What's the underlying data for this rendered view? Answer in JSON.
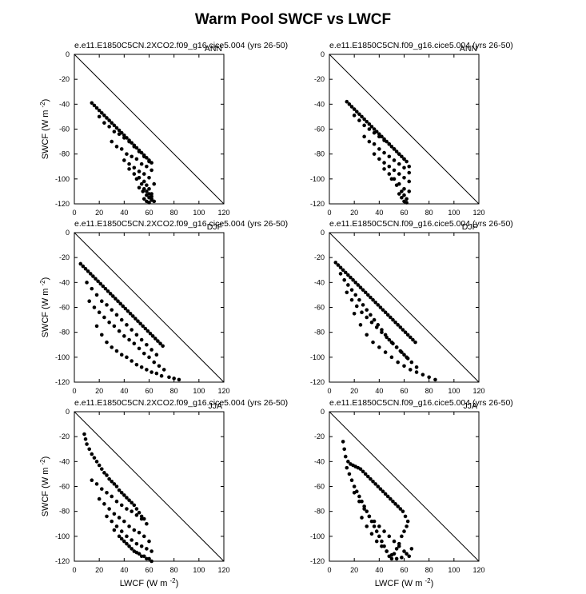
{
  "figure": {
    "title": "Warm Pool SWCF vs LWCF",
    "xlabel": "LWCF (W m",
    "ylabel": "SWCF (W m",
    "unit_exp": "-2",
    "unit_close": ")"
  },
  "chart_data": [
    {
      "type": "scatter",
      "title": "e.e11.E1850C5CN.2XCO2.f09_g16.cice5.004 (yrs 26-50)",
      "season": "ANN",
      "xlabel": "",
      "ylabel": "SWCF (W m-2)",
      "xlim": [
        0,
        120
      ],
      "ylim": [
        -120,
        0
      ],
      "xticks": [
        0,
        20,
        40,
        60,
        80,
        100,
        120
      ],
      "yticks": [
        0,
        -20,
        -40,
        -60,
        -80,
        -100,
        -120
      ],
      "reference_line": [
        [
          0,
          0
        ],
        [
          120,
          -120
        ]
      ],
      "series": [
        {
          "x": [
            14,
            16,
            18,
            20,
            22,
            24,
            26,
            28,
            30,
            32,
            34,
            36,
            38,
            40,
            42,
            44,
            46,
            48,
            50,
            52,
            54,
            56,
            58,
            60,
            62,
            20,
            24,
            28,
            32,
            36,
            40,
            44,
            48,
            52,
            56,
            60,
            30,
            34,
            38,
            42,
            46,
            50,
            54,
            58,
            62,
            40,
            44,
            48,
            52,
            56,
            60,
            64,
            44,
            48,
            52,
            56,
            58,
            60,
            62,
            50,
            54,
            56,
            58,
            60,
            62,
            52,
            55,
            58,
            60,
            62,
            64,
            56,
            58,
            60,
            62
          ],
          "y": [
            -39,
            -41,
            -43,
            -45,
            -47,
            -49,
            -51,
            -53,
            -55,
            -57,
            -59,
            -61,
            -63,
            -65,
            -67,
            -69,
            -71,
            -73,
            -75,
            -77,
            -79,
            -81,
            -83,
            -85,
            -87,
            -50,
            -55,
            -58,
            -62,
            -64,
            -67,
            -70,
            -74,
            -78,
            -82,
            -86,
            -70,
            -74,
            -76,
            -80,
            -82,
            -84,
            -88,
            -90,
            -93,
            -85,
            -88,
            -91,
            -94,
            -96,
            -99,
            -104,
            -92,
            -96,
            -99,
            -102,
            -105,
            -108,
            -112,
            -100,
            -104,
            -108,
            -110,
            -112,
            -114,
            -107,
            -110,
            -113,
            -115,
            -117,
            -118,
            -116,
            -118,
            -119,
            -116
          ]
        }
      ]
    },
    {
      "type": "scatter",
      "title": "e.e11.E1850C5CN.f09_g16.cice5.004 (yrs 26-50)",
      "season": "ANN",
      "xlabel": "",
      "ylabel": "",
      "xlim": [
        0,
        120
      ],
      "ylim": [
        -120,
        0
      ],
      "xticks": [
        0,
        20,
        40,
        60,
        80,
        100,
        120
      ],
      "yticks": [
        0,
        -20,
        -40,
        -60,
        -80,
        -100,
        -120
      ],
      "reference_line": [
        [
          0,
          0
        ],
        [
          120,
          -120
        ]
      ],
      "series": [
        {
          "x": [
            14,
            16,
            18,
            20,
            22,
            24,
            26,
            28,
            30,
            32,
            34,
            36,
            38,
            40,
            42,
            44,
            46,
            48,
            50,
            52,
            54,
            56,
            58,
            60,
            62,
            64,
            20,
            24,
            28,
            32,
            36,
            40,
            44,
            48,
            52,
            56,
            60,
            28,
            32,
            36,
            40,
            44,
            48,
            52,
            56,
            60,
            64,
            36,
            40,
            44,
            48,
            52,
            56,
            60,
            64,
            44,
            48,
            52,
            56,
            60,
            64,
            50,
            54,
            58,
            60,
            62,
            56,
            58,
            60,
            62
          ],
          "y": [
            -38,
            -40,
            -42,
            -44,
            -46,
            -48,
            -50,
            -52,
            -54,
            -56,
            -58,
            -60,
            -62,
            -64,
            -66,
            -68,
            -70,
            -72,
            -74,
            -76,
            -78,
            -80,
            -82,
            -84,
            -86,
            -90,
            -49,
            -53,
            -57,
            -60,
            -63,
            -66,
            -69,
            -72,
            -76,
            -80,
            -84,
            -66,
            -70,
            -72,
            -76,
            -79,
            -82,
            -85,
            -88,
            -91,
            -95,
            -80,
            -84,
            -87,
            -90,
            -93,
            -96,
            -99,
            -102,
            -92,
            -96,
            -100,
            -104,
            -108,
            -110,
            -100,
            -105,
            -110,
            -113,
            -116,
            -112,
            -115,
            -118,
            -119
          ]
        }
      ]
    },
    {
      "type": "scatter",
      "title": "e.e11.E1850C5CN.2XCO2.f09_g16.cice5.004 (yrs 26-50)",
      "season": "DJF",
      "xlabel": "",
      "ylabel": "SWCF (W m-2)",
      "xlim": [
        0,
        120
      ],
      "ylim": [
        -120,
        0
      ],
      "xticks": [
        0,
        20,
        40,
        60,
        80,
        100,
        120
      ],
      "yticks": [
        0,
        -20,
        -40,
        -60,
        -80,
        -100,
        -120
      ],
      "reference_line": [
        [
          0,
          0
        ],
        [
          120,
          -120
        ]
      ],
      "series": [
        {
          "x": [
            5,
            7,
            9,
            11,
            13,
            15,
            17,
            19,
            21,
            23,
            25,
            27,
            29,
            31,
            33,
            35,
            37,
            39,
            41,
            43,
            45,
            47,
            49,
            51,
            53,
            55,
            57,
            59,
            61,
            63,
            65,
            67,
            69,
            71,
            10,
            14,
            18,
            22,
            26,
            30,
            34,
            38,
            42,
            46,
            50,
            54,
            58,
            62,
            66,
            12,
            16,
            20,
            24,
            28,
            32,
            36,
            40,
            44,
            48,
            52,
            56,
            60,
            64,
            68,
            72,
            18,
            22,
            26,
            30,
            34,
            38,
            42,
            46,
            50,
            54,
            58,
            62,
            66,
            70,
            76,
            80,
            84
          ],
          "y": [
            -25,
            -27,
            -29,
            -31,
            -33,
            -35,
            -37,
            -39,
            -41,
            -43,
            -45,
            -47,
            -49,
            -51,
            -53,
            -55,
            -57,
            -59,
            -61,
            -63,
            -65,
            -67,
            -69,
            -71,
            -73,
            -75,
            -77,
            -79,
            -81,
            -83,
            -85,
            -87,
            -89,
            -91,
            -40,
            -45,
            -50,
            -55,
            -58,
            -62,
            -66,
            -70,
            -74,
            -78,
            -82,
            -86,
            -90,
            -94,
            -98,
            -55,
            -60,
            -64,
            -68,
            -72,
            -75,
            -79,
            -83,
            -86,
            -89,
            -93,
            -97,
            -100,
            -104,
            -107,
            -110,
            -75,
            -82,
            -88,
            -92,
            -95,
            -98,
            -100,
            -103,
            -106,
            -108,
            -110,
            -112,
            -113,
            -115,
            -116,
            -117,
            -118
          ]
        }
      ]
    },
    {
      "type": "scatter",
      "title": "e.e11.E1850C5CN.f09_g16.cice5.004 (yrs 26-50)",
      "season": "DJF",
      "xlabel": "",
      "ylabel": "",
      "xlim": [
        0,
        120
      ],
      "ylim": [
        -120,
        0
      ],
      "xticks": [
        0,
        20,
        40,
        60,
        80,
        100,
        120
      ],
      "yticks": [
        0,
        -20,
        -40,
        -60,
        -80,
        -100,
        -120
      ],
      "reference_line": [
        [
          0,
          0
        ],
        [
          120,
          -120
        ]
      ],
      "series": [
        {
          "x": [
            5,
            7,
            9,
            11,
            13,
            15,
            17,
            19,
            21,
            23,
            25,
            27,
            29,
            31,
            33,
            35,
            37,
            39,
            41,
            43,
            45,
            47,
            49,
            51,
            53,
            55,
            57,
            59,
            61,
            63,
            65,
            67,
            69,
            9,
            12,
            15,
            18,
            21,
            24,
            27,
            30,
            33,
            36,
            39,
            42,
            45,
            48,
            51,
            54,
            57,
            60,
            63,
            14,
            18,
            22,
            26,
            30,
            34,
            38,
            42,
            46,
            50,
            54,
            58,
            62,
            66,
            70,
            20,
            25,
            30,
            35,
            40,
            45,
            50,
            55,
            60,
            65,
            70,
            75,
            80,
            85
          ],
          "y": [
            -24,
            -26,
            -28,
            -30,
            -32,
            -34,
            -36,
            -38,
            -40,
            -42,
            -44,
            -46,
            -48,
            -50,
            -52,
            -54,
            -56,
            -58,
            -60,
            -62,
            -64,
            -66,
            -68,
            -70,
            -72,
            -74,
            -76,
            -78,
            -80,
            -82,
            -84,
            -86,
            -88,
            -33,
            -38,
            -42,
            -46,
            -50,
            -54,
            -58,
            -62,
            -66,
            -70,
            -74,
            -78,
            -82,
            -86,
            -89,
            -92,
            -95,
            -98,
            -101,
            -48,
            -54,
            -59,
            -64,
            -68,
            -72,
            -76,
            -80,
            -84,
            -88,
            -92,
            -96,
            -100,
            -104,
            -108,
            -65,
            -74,
            -82,
            -88,
            -92,
            -96,
            -100,
            -104,
            -107,
            -110,
            -112,
            -114,
            -116,
            -118
          ]
        }
      ]
    },
    {
      "type": "scatter",
      "title": "e.e11.E1850C5CN.2XCO2.f09_g16.cice5.004 (yrs 26-50)",
      "season": "JJA",
      "xlabel": "LWCF (W m-2)",
      "ylabel": "SWCF (W m-2)",
      "xlim": [
        0,
        120
      ],
      "ylim": [
        -120,
        0
      ],
      "xticks": [
        0,
        20,
        40,
        60,
        80,
        100,
        120
      ],
      "yticks": [
        0,
        -20,
        -40,
        -60,
        -80,
        -100,
        -120
      ],
      "reference_line": [
        [
          0,
          0
        ],
        [
          120,
          -120
        ]
      ],
      "series": [
        {
          "x": [
            8,
            9,
            10,
            12,
            14,
            16,
            18,
            20,
            22,
            24,
            26,
            28,
            30,
            32,
            34,
            36,
            38,
            40,
            42,
            44,
            46,
            48,
            50,
            52,
            54,
            56,
            14,
            18,
            22,
            26,
            30,
            34,
            38,
            42,
            46,
            50,
            54,
            58,
            20,
            24,
            28,
            32,
            36,
            40,
            44,
            48,
            52,
            56,
            60,
            26,
            30,
            34,
            38,
            42,
            46,
            50,
            54,
            58,
            62,
            32,
            36,
            40,
            44,
            48,
            52,
            56,
            60,
            38,
            42,
            46,
            50,
            54,
            58,
            62
          ],
          "y": [
            -18,
            -22,
            -26,
            -30,
            -34,
            -37,
            -40,
            -43,
            -46,
            -49,
            -51,
            -54,
            -56,
            -58,
            -60,
            -63,
            -65,
            -67,
            -69,
            -71,
            -73,
            -75,
            -78,
            -81,
            -84,
            -86,
            -55,
            -58,
            -62,
            -65,
            -68,
            -72,
            -75,
            -78,
            -80,
            -83,
            -86,
            -90,
            -70,
            -74,
            -78,
            -82,
            -85,
            -88,
            -92,
            -95,
            -97,
            -100,
            -104,
            -84,
            -88,
            -92,
            -96,
            -100,
            -103,
            -106,
            -108,
            -110,
            -112,
            -95,
            -100,
            -104,
            -108,
            -112,
            -114,
            -116,
            -118,
            -102,
            -106,
            -110,
            -113,
            -116,
            -118,
            -120
          ]
        }
      ]
    },
    {
      "type": "scatter",
      "title": "e.e11.E1850C5CN.f09_g16.cice5.004 (yrs 26-50)",
      "season": "JJA",
      "xlabel": "LWCF (W m-2)",
      "ylabel": "",
      "xlim": [
        0,
        120
      ],
      "ylim": [
        -120,
        0
      ],
      "xticks": [
        0,
        20,
        40,
        60,
        80,
        100,
        120
      ],
      "yticks": [
        0,
        -20,
        -40,
        -60,
        -80,
        -100,
        -120
      ],
      "reference_line": [
        [
          0,
          0
        ],
        [
          120,
          -120
        ]
      ],
      "series": [
        {
          "x": [
            11,
            12,
            13,
            15,
            17,
            19,
            21,
            23,
            25,
            27,
            29,
            31,
            33,
            35,
            37,
            39,
            41,
            43,
            45,
            47,
            49,
            51,
            53,
            55,
            57,
            59,
            61,
            63,
            14,
            16,
            18,
            20,
            22,
            24,
            26,
            28,
            30,
            32,
            34,
            36,
            38,
            40,
            42,
            44,
            46,
            48,
            50,
            52,
            54,
            56,
            58,
            60,
            62,
            20,
            24,
            28,
            32,
            36,
            40,
            44,
            48,
            52,
            56,
            60,
            64,
            26,
            30,
            34,
            38,
            42,
            46,
            50,
            54,
            58,
            62,
            66
          ],
          "y": [
            -24,
            -30,
            -36,
            -40,
            -42,
            -43,
            -44,
            -45,
            -46,
            -48,
            -50,
            -52,
            -54,
            -56,
            -58,
            -60,
            -62,
            -64,
            -66,
            -68,
            -70,
            -72,
            -74,
            -76,
            -78,
            -80,
            -84,
            -88,
            -45,
            -50,
            -55,
            -60,
            -64,
            -68,
            -72,
            -76,
            -80,
            -84,
            -88,
            -92,
            -96,
            -100,
            -104,
            -108,
            -112,
            -116,
            -118,
            -114,
            -110,
            -106,
            -100,
            -96,
            -92,
            -65,
            -72,
            -78,
            -84,
            -88,
            -92,
            -96,
            -100,
            -104,
            -108,
            -112,
            -116,
            -85,
            -92,
            -98,
            -104,
            -108,
            -112,
            -115,
            -118,
            -117,
            -114,
            -110
          ]
        }
      ]
    }
  ]
}
